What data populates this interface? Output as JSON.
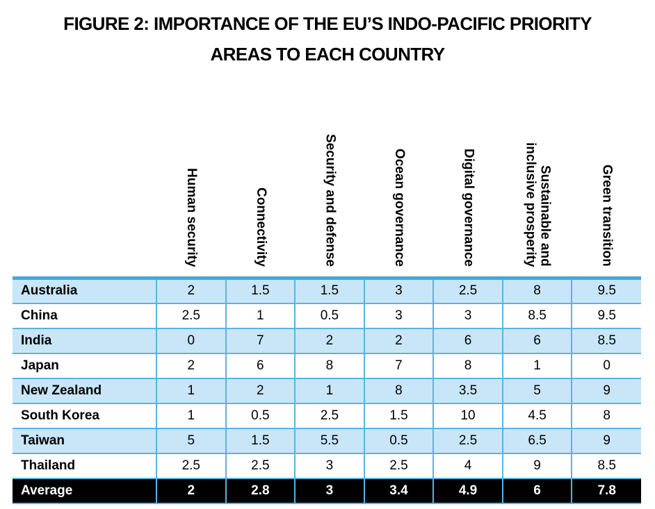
{
  "figure": {
    "title_line1": "FIGURE 2: IMPORTANCE OF THE EU’S INDO-PACIFIC PRIORITY",
    "title_line2": "AREAS TO EACH COUNTRY"
  },
  "colors": {
    "stripe_row": "#c8e6f7",
    "border_thick": "#43a7da",
    "border_thin": "#5ab3e2",
    "average_row_bg": "#000000",
    "average_row_text": "#ffffff",
    "text": "#000000"
  },
  "chart_data": {
    "type": "table",
    "title": "FIGURE 2: IMPORTANCE OF THE EU’S INDO-PACIFIC PRIORITY AREAS TO EACH COUNTRY",
    "columns": [
      "Human security",
      "Connectivity",
      "Security and defense",
      "Ocean governance",
      "Digital governance",
      "Sustainable and\ninclusive prosperity",
      "Green transition"
    ],
    "rows": [
      {
        "country": "Australia",
        "values": [
          2,
          1.5,
          1.5,
          3,
          2.5,
          8,
          9.5
        ]
      },
      {
        "country": "China",
        "values": [
          2.5,
          1,
          0.5,
          3,
          3,
          8.5,
          9.5
        ]
      },
      {
        "country": "India",
        "values": [
          0,
          7,
          2,
          2,
          6,
          6,
          8.5
        ]
      },
      {
        "country": "Japan",
        "values": [
          2,
          6,
          8,
          7,
          8,
          1,
          0
        ]
      },
      {
        "country": "New Zealand",
        "values": [
          1,
          2,
          1,
          8,
          3.5,
          5,
          9
        ]
      },
      {
        "country": "South Korea",
        "values": [
          1,
          0.5,
          2.5,
          1.5,
          10,
          4.5,
          8
        ]
      },
      {
        "country": "Taiwan",
        "values": [
          5,
          1.5,
          5.5,
          0.5,
          2.5,
          6.5,
          9
        ]
      },
      {
        "country": "Thailand",
        "values": [
          2.5,
          2.5,
          3,
          2.5,
          4,
          9,
          8.5
        ]
      }
    ],
    "average_row": {
      "label": "Average",
      "values": [
        2,
        2.8,
        3,
        3.4,
        4.9,
        6,
        7.8
      ]
    },
    "value_range": [
      0,
      10
    ]
  }
}
